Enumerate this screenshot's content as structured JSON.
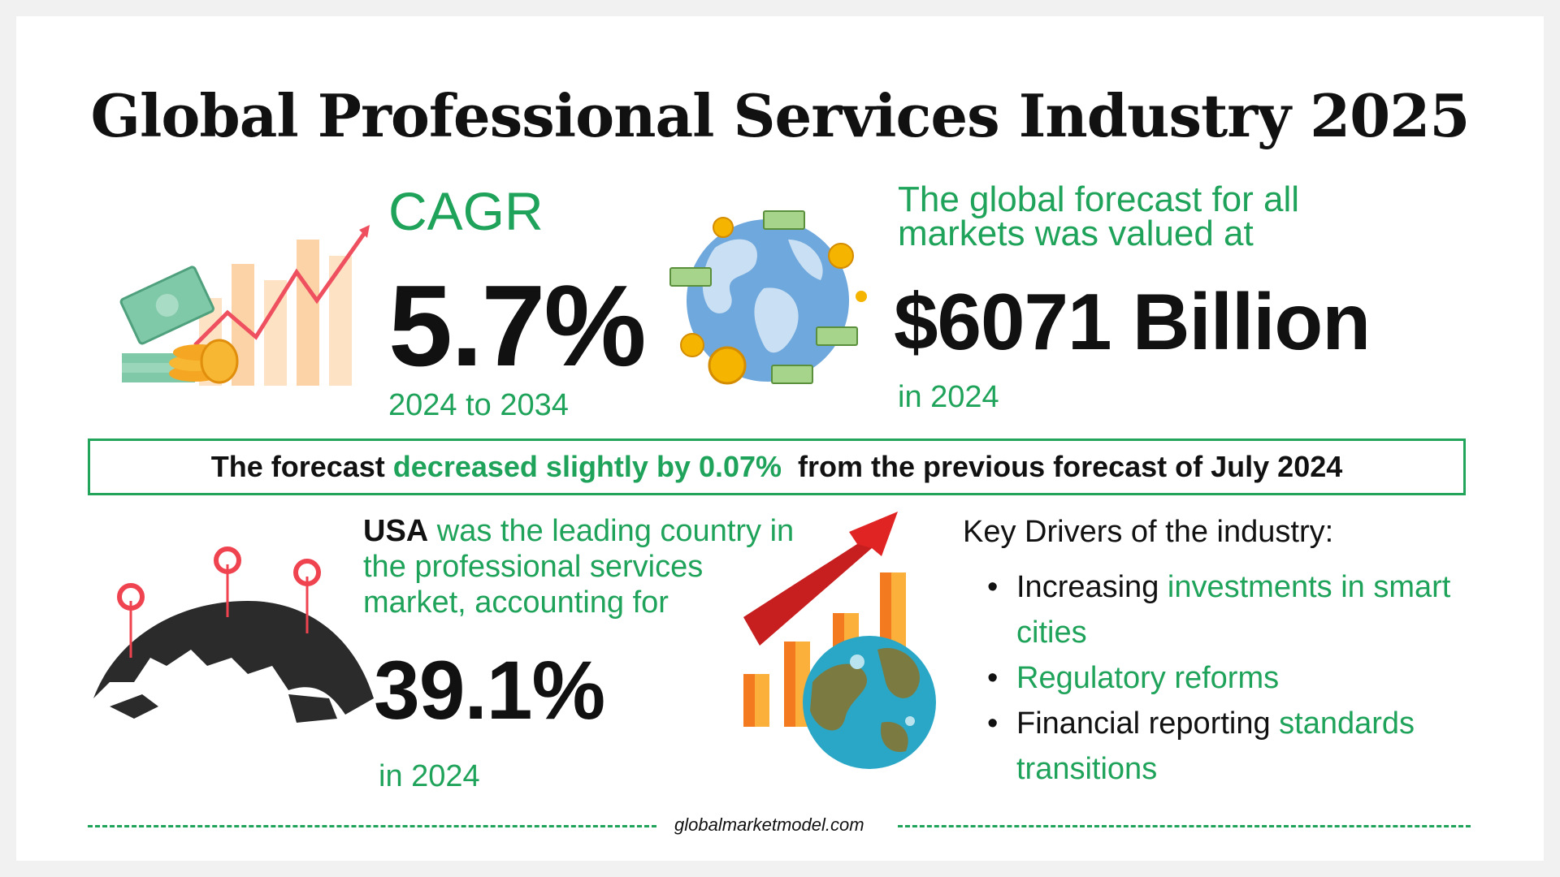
{
  "title": "Global Professional Services Industry 2025",
  "cagr": {
    "label": "CAGR",
    "value": "5.7%",
    "period": "2024 to 2034"
  },
  "forecast": {
    "text": "The global forecast for all markets was valued at",
    "value": "$6071 Billion",
    "year": "in 2024"
  },
  "banner": {
    "prefix": "The forecast ",
    "highlight": "decreased slightly by 0.07%",
    "suffix": "  from the previous forecast of July 2024"
  },
  "usa": {
    "country": "USA",
    "text": " was the leading country in the professional services  market, accounting for",
    "value": "39.1%",
    "year": "in 2024"
  },
  "drivers": {
    "title": "Key Drivers of the industry:",
    "items": [
      {
        "plain": "Increasing ",
        "highlight": "investments in smart cities"
      },
      {
        "plain": "",
        "highlight": "Regulatory reforms"
      },
      {
        "plain": "Financial reporting ",
        "highlight": "standards transitions"
      }
    ]
  },
  "footer": {
    "site": "globalmarketmodel.com"
  },
  "colors": {
    "accent": "#1fa35a",
    "text": "#111111",
    "arrow_red": "#e02424",
    "bar_orange": "#f7941d"
  },
  "icons": [
    "money-growth-chart-icon",
    "globe-money-icon",
    "world-map-pins-icon",
    "growth-globe-chart-icon"
  ]
}
